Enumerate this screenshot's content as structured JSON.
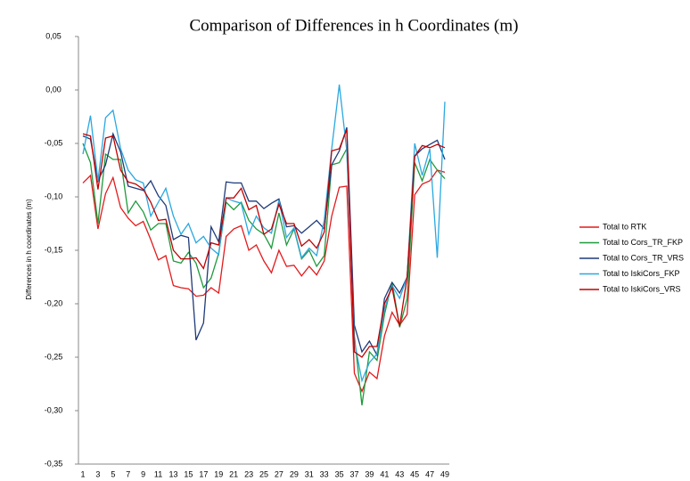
{
  "chart_data": {
    "type": "line",
    "title": "Comparison of Differences in h Coordinates (m)",
    "y_label": "Differences in h coordinates (m)",
    "categories": [
      "1",
      "2",
      "3",
      "4",
      "5",
      "6",
      "7",
      "8",
      "9",
      "10",
      "11",
      "12",
      "13",
      "14",
      "15",
      "16",
      "17",
      "18",
      "19",
      "20",
      "21",
      "22",
      "23",
      "24",
      "25",
      "26",
      "27",
      "28",
      "29",
      "30",
      "31",
      "32",
      "33",
      "34",
      "35",
      "36",
      "37",
      "38",
      "39",
      "40",
      "41",
      "42",
      "43",
      "44",
      "45",
      "46",
      "47",
      "48",
      "49"
    ],
    "ylim": [
      -0.35,
      0.05
    ],
    "yticks": [
      {
        "value": -0.35,
        "label": "-0,35"
      },
      {
        "value": -0.3,
        "label": "-0,30"
      },
      {
        "value": -0.25,
        "label": "-0,25"
      },
      {
        "value": -0.2,
        "label": "-0,20"
      },
      {
        "value": -0.15,
        "label": "-0,15"
      },
      {
        "value": -0.1,
        "label": "-0,10"
      },
      {
        "value": -0.05,
        "label": "-0,05"
      },
      {
        "value": 0,
        "label": "0,00"
      },
      {
        "value": 0.05,
        "label": "0,05"
      }
    ],
    "series": [
      {
        "name": "Total to RTK",
        "color": "#e31a1c",
        "values": [
          -0.087,
          -0.08,
          -0.13,
          -0.097,
          -0.082,
          -0.11,
          -0.12,
          -0.127,
          -0.123,
          -0.14,
          -0.159,
          -0.155,
          -0.183,
          -0.185,
          -0.186,
          -0.193,
          -0.192,
          -0.185,
          -0.19,
          -0.137,
          -0.13,
          -0.127,
          -0.15,
          -0.145,
          -0.16,
          -0.171,
          -0.15,
          -0.165,
          -0.164,
          -0.174,
          -0.165,
          -0.173,
          -0.16,
          -0.118,
          -0.091,
          -0.09,
          -0.265,
          -0.282,
          -0.264,
          -0.27,
          -0.23,
          -0.208,
          -0.22,
          -0.21,
          -0.098,
          -0.088,
          -0.085,
          -0.075,
          -0.077
        ]
      },
      {
        "name": "Total to Cors_TR_FKP",
        "color": "#1e9a3c",
        "values": [
          -0.05,
          -0.068,
          -0.125,
          -0.06,
          -0.065,
          -0.065,
          -0.115,
          -0.104,
          -0.114,
          -0.131,
          -0.125,
          -0.125,
          -0.16,
          -0.162,
          -0.152,
          -0.162,
          -0.185,
          -0.176,
          -0.153,
          -0.105,
          -0.112,
          -0.105,
          -0.122,
          -0.13,
          -0.135,
          -0.148,
          -0.115,
          -0.145,
          -0.13,
          -0.158,
          -0.15,
          -0.165,
          -0.155,
          -0.07,
          -0.068,
          -0.055,
          -0.23,
          -0.295,
          -0.245,
          -0.253,
          -0.21,
          -0.18,
          -0.222,
          -0.195,
          -0.068,
          -0.085,
          -0.065,
          -0.075,
          -0.083
        ]
      },
      {
        "name": "Total to Cors_TR_VRS",
        "color": "#1f3a7a",
        "values": [
          -0.043,
          -0.046,
          -0.085,
          -0.07,
          -0.041,
          -0.058,
          -0.09,
          -0.092,
          -0.094,
          -0.085,
          -0.099,
          -0.108,
          -0.14,
          -0.136,
          -0.138,
          -0.234,
          -0.218,
          -0.128,
          -0.142,
          -0.086,
          -0.087,
          -0.087,
          -0.104,
          -0.104,
          -0.111,
          -0.106,
          -0.102,
          -0.128,
          -0.127,
          -0.134,
          -0.128,
          -0.122,
          -0.13,
          -0.07,
          -0.057,
          -0.035,
          -0.22,
          -0.245,
          -0.235,
          -0.248,
          -0.195,
          -0.18,
          -0.19,
          -0.175,
          -0.062,
          -0.055,
          -0.051,
          -0.047,
          -0.065
        ]
      },
      {
        "name": "Total to IskiCors_FKP",
        "color": "#2aa8e0",
        "values": [
          -0.06,
          -0.024,
          -0.085,
          -0.026,
          -0.019,
          -0.055,
          -0.075,
          -0.084,
          -0.087,
          -0.118,
          -0.105,
          -0.092,
          -0.118,
          -0.135,
          -0.125,
          -0.143,
          -0.137,
          -0.148,
          -0.154,
          -0.101,
          -0.104,
          -0.106,
          -0.135,
          -0.118,
          -0.129,
          -0.134,
          -0.103,
          -0.138,
          -0.129,
          -0.157,
          -0.148,
          -0.155,
          -0.122,
          -0.055,
          0.005,
          -0.057,
          -0.235,
          -0.272,
          -0.255,
          -0.247,
          -0.205,
          -0.183,
          -0.195,
          -0.175,
          -0.05,
          -0.08,
          -0.055,
          -0.157,
          -0.011
        ]
      },
      {
        "name": "Total to IskiCors_VRS",
        "color": "#c00000",
        "values": [
          -0.041,
          -0.043,
          -0.093,
          -0.045,
          -0.043,
          -0.075,
          -0.086,
          -0.088,
          -0.093,
          -0.105,
          -0.122,
          -0.121,
          -0.15,
          -0.158,
          -0.158,
          -0.157,
          -0.167,
          -0.143,
          -0.145,
          -0.101,
          -0.101,
          -0.092,
          -0.112,
          -0.108,
          -0.135,
          -0.13,
          -0.107,
          -0.125,
          -0.125,
          -0.146,
          -0.14,
          -0.148,
          -0.133,
          -0.057,
          -0.055,
          -0.037,
          -0.245,
          -0.25,
          -0.24,
          -0.24,
          -0.2,
          -0.185,
          -0.221,
          -0.175,
          -0.062,
          -0.052,
          -0.054,
          -0.051,
          -0.054
        ]
      }
    ],
    "legend": "right",
    "grid": false
  }
}
